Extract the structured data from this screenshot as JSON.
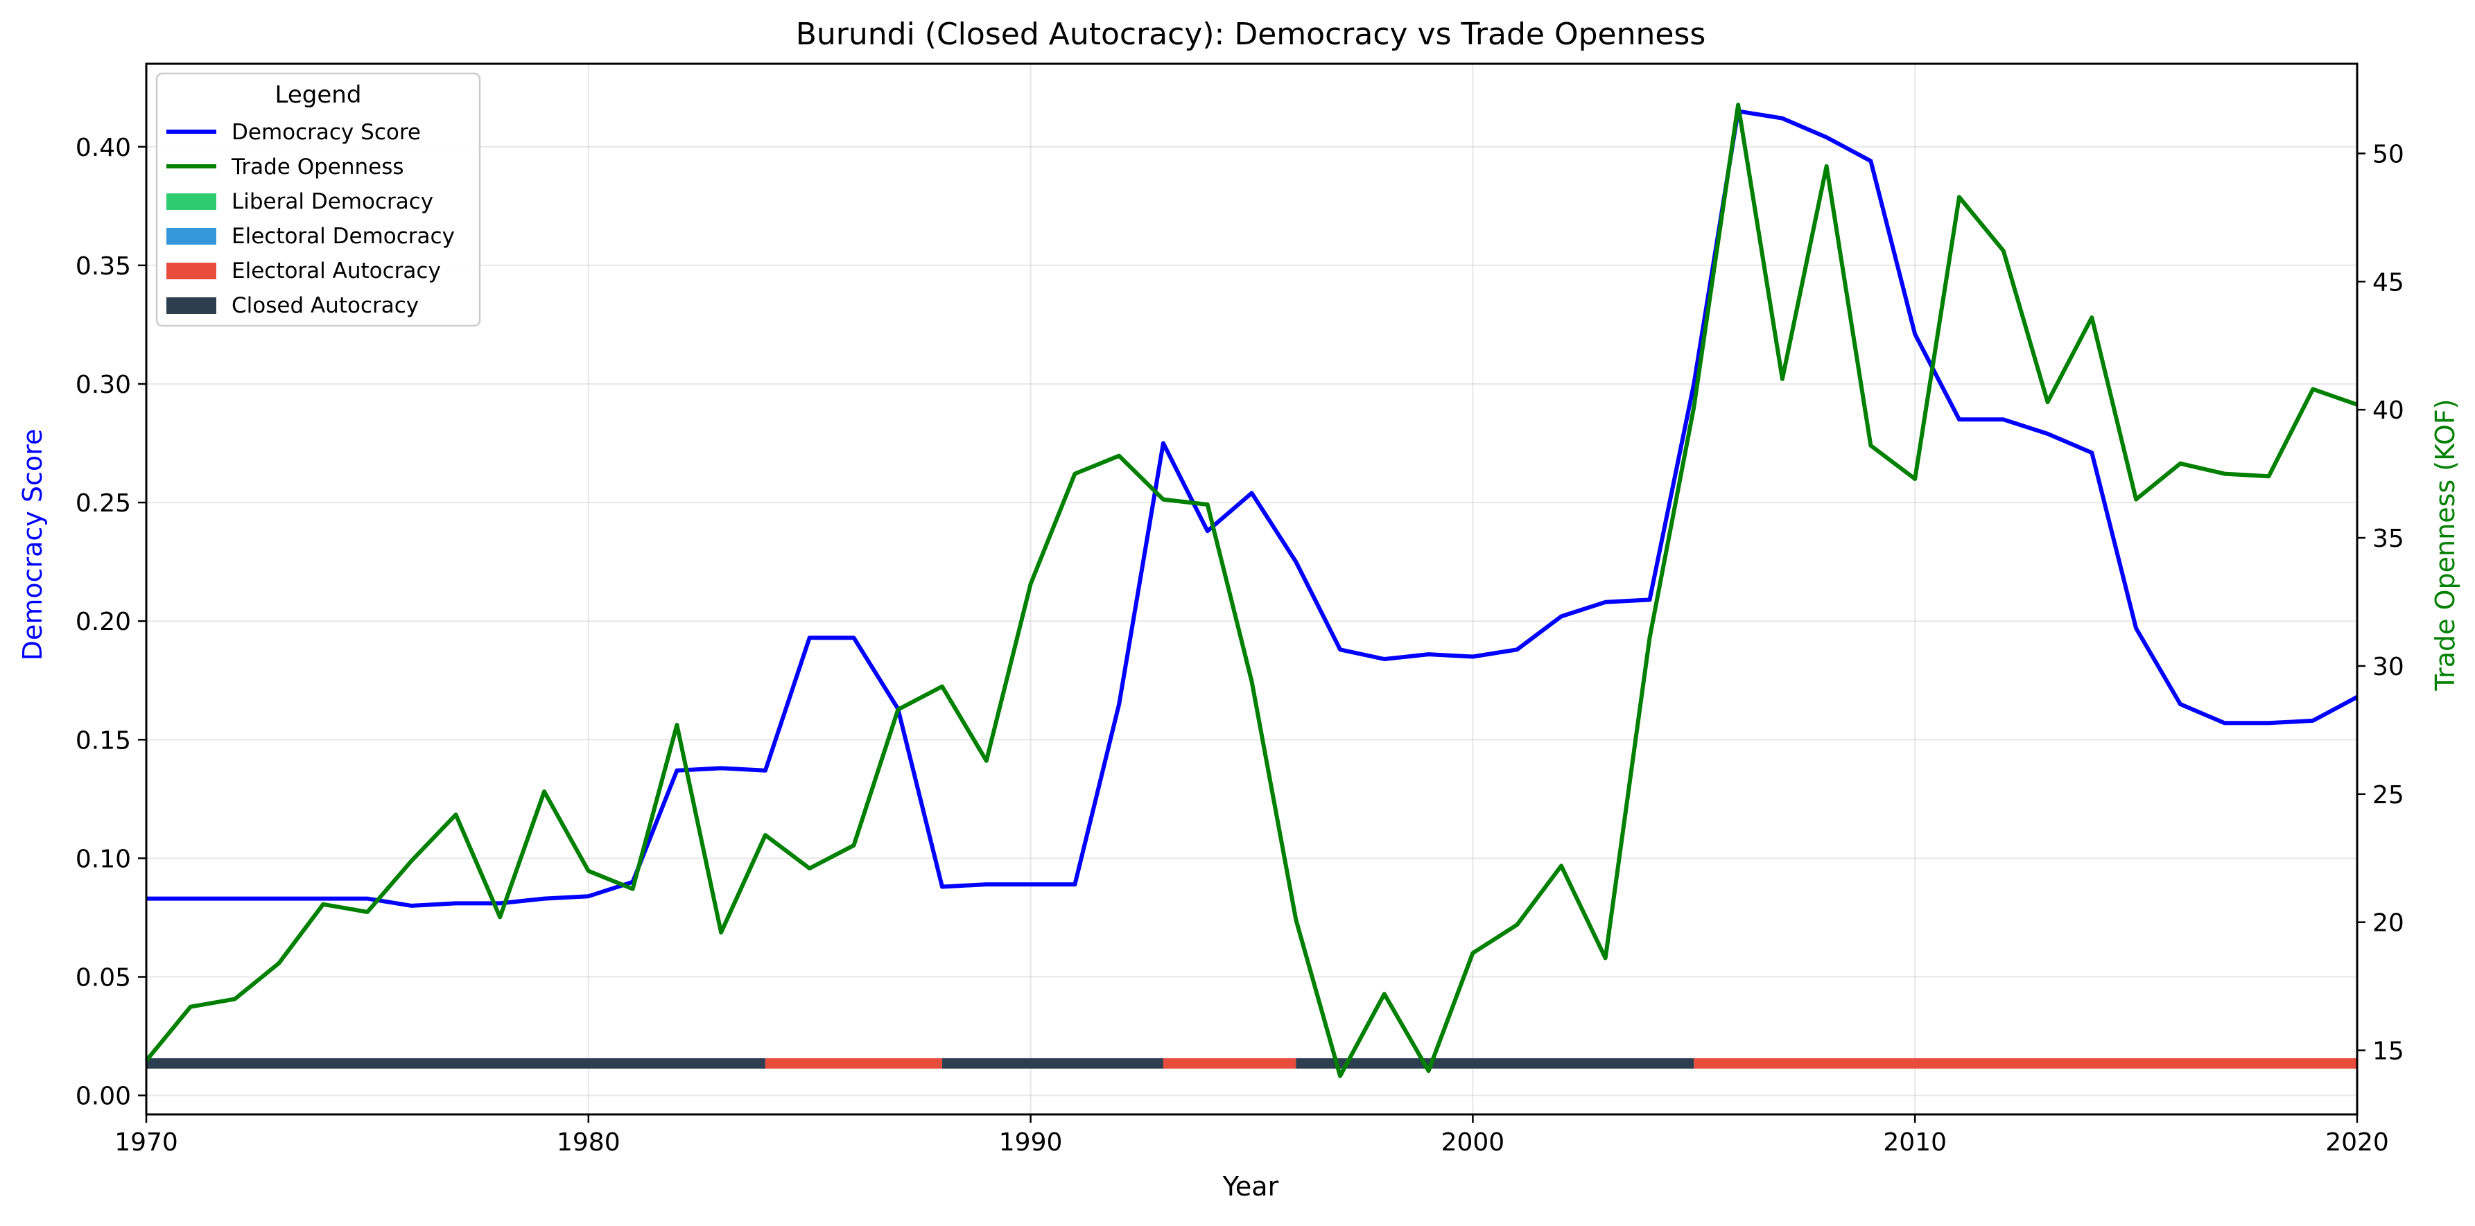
{
  "chart_data": {
    "type": "line",
    "title": "Burundi (Closed Autocracy): Democracy vs Trade Openness",
    "xlabel": "Year",
    "ylabel_left": "Democracy Score",
    "ylabel_right": "Trade Openness (KOF)",
    "xlim": [
      1970,
      2020
    ],
    "ylim_left": [
      -0.008,
      0.435
    ],
    "ylim_right": [
      12.5,
      53.5
    ],
    "x_ticks": [
      1970,
      1980,
      1990,
      2000,
      2010,
      2020
    ],
    "y_left_ticks": [
      0.0,
      0.05,
      0.1,
      0.15,
      0.2,
      0.25,
      0.3,
      0.35,
      0.4
    ],
    "y_left_tick_labels": [
      "0.00",
      "0.05",
      "0.10",
      "0.15",
      "0.20",
      "0.25",
      "0.30",
      "0.35",
      "0.40"
    ],
    "y_right_ticks": [
      15,
      20,
      25,
      30,
      35,
      40,
      45,
      50
    ],
    "grid": true,
    "legend": {
      "title": "Legend",
      "position": "top-left",
      "entries": [
        {
          "label": "Democracy Score",
          "kind": "line",
          "color": "#0000ff"
        },
        {
          "label": "Trade Openness",
          "kind": "line",
          "color": "#008000"
        },
        {
          "label": "Liberal Democracy",
          "kind": "patch",
          "color": "#2ecc71"
        },
        {
          "label": "Electoral Democracy",
          "kind": "patch",
          "color": "#3498db"
        },
        {
          "label": "Electoral Autocracy",
          "kind": "patch",
          "color": "#e74c3c"
        },
        {
          "label": "Closed Autocracy",
          "kind": "patch",
          "color": "#2c3e50"
        }
      ]
    },
    "years": [
      1970,
      1971,
      1972,
      1973,
      1974,
      1975,
      1976,
      1977,
      1978,
      1979,
      1980,
      1981,
      1982,
      1983,
      1984,
      1985,
      1986,
      1987,
      1988,
      1989,
      1990,
      1991,
      1992,
      1993,
      1994,
      1995,
      1996,
      1997,
      1998,
      1999,
      2000,
      2001,
      2002,
      2003,
      2004,
      2005,
      2006,
      2007,
      2008,
      2009,
      2010,
      2011,
      2012,
      2013,
      2014,
      2015,
      2016,
      2017,
      2018,
      2019,
      2020
    ],
    "series": [
      {
        "name": "Democracy Score",
        "axis": "left",
        "color": "#0000ff",
        "values": [
          0.083,
          0.083,
          0.083,
          0.083,
          0.083,
          0.083,
          0.08,
          0.081,
          0.081,
          0.083,
          0.084,
          0.09,
          0.137,
          0.138,
          0.137,
          0.193,
          0.193,
          0.163,
          0.088,
          0.089,
          0.089,
          0.089,
          0.165,
          0.275,
          0.238,
          0.254,
          0.225,
          0.188,
          0.184,
          0.186,
          0.185,
          0.188,
          0.202,
          0.208,
          0.209,
          0.3,
          0.415,
          0.412,
          0.404,
          0.394,
          0.321,
          0.285,
          0.285,
          0.279,
          0.271,
          0.197,
          0.165,
          0.157,
          0.157,
          0.158,
          0.168
        ]
      },
      {
        "name": "Trade Openness",
        "axis": "right",
        "color": "#008000",
        "values": [
          14.6,
          16.7,
          17.0,
          18.4,
          20.7,
          20.4,
          22.4,
          24.2,
          20.2,
          25.1,
          22.0,
          21.3,
          27.7,
          19.6,
          23.4,
          22.1,
          23.0,
          28.3,
          29.2,
          26.3,
          33.2,
          37.5,
          38.2,
          36.5,
          36.3,
          29.4,
          20.1,
          14.0,
          17.2,
          14.2,
          18.8,
          19.9,
          22.2,
          18.6,
          31.1,
          40.1,
          51.9,
          41.2,
          49.5,
          38.6,
          37.3,
          48.3,
          46.2,
          40.3,
          43.6,
          36.5,
          37.9,
          37.5,
          37.4,
          40.8,
          40.2
        ]
      }
    ],
    "regime_bar": {
      "y_value": 0.0135,
      "segments": [
        {
          "start": 1970,
          "end": 1984,
          "regime": "Closed Autocracy",
          "color": "#2c3e50"
        },
        {
          "start": 1984,
          "end": 1988,
          "regime": "Electoral Autocracy",
          "color": "#e74c3c"
        },
        {
          "start": 1988,
          "end": 1993,
          "regime": "Closed Autocracy",
          "color": "#2c3e50"
        },
        {
          "start": 1993,
          "end": 1996,
          "regime": "Electoral Autocracy",
          "color": "#e74c3c"
        },
        {
          "start": 1996,
          "end": 2005,
          "regime": "Closed Autocracy",
          "color": "#2c3e50"
        },
        {
          "start": 2005,
          "end": 2020,
          "regime": "Electoral Autocracy",
          "color": "#e74c3c"
        }
      ]
    }
  }
}
